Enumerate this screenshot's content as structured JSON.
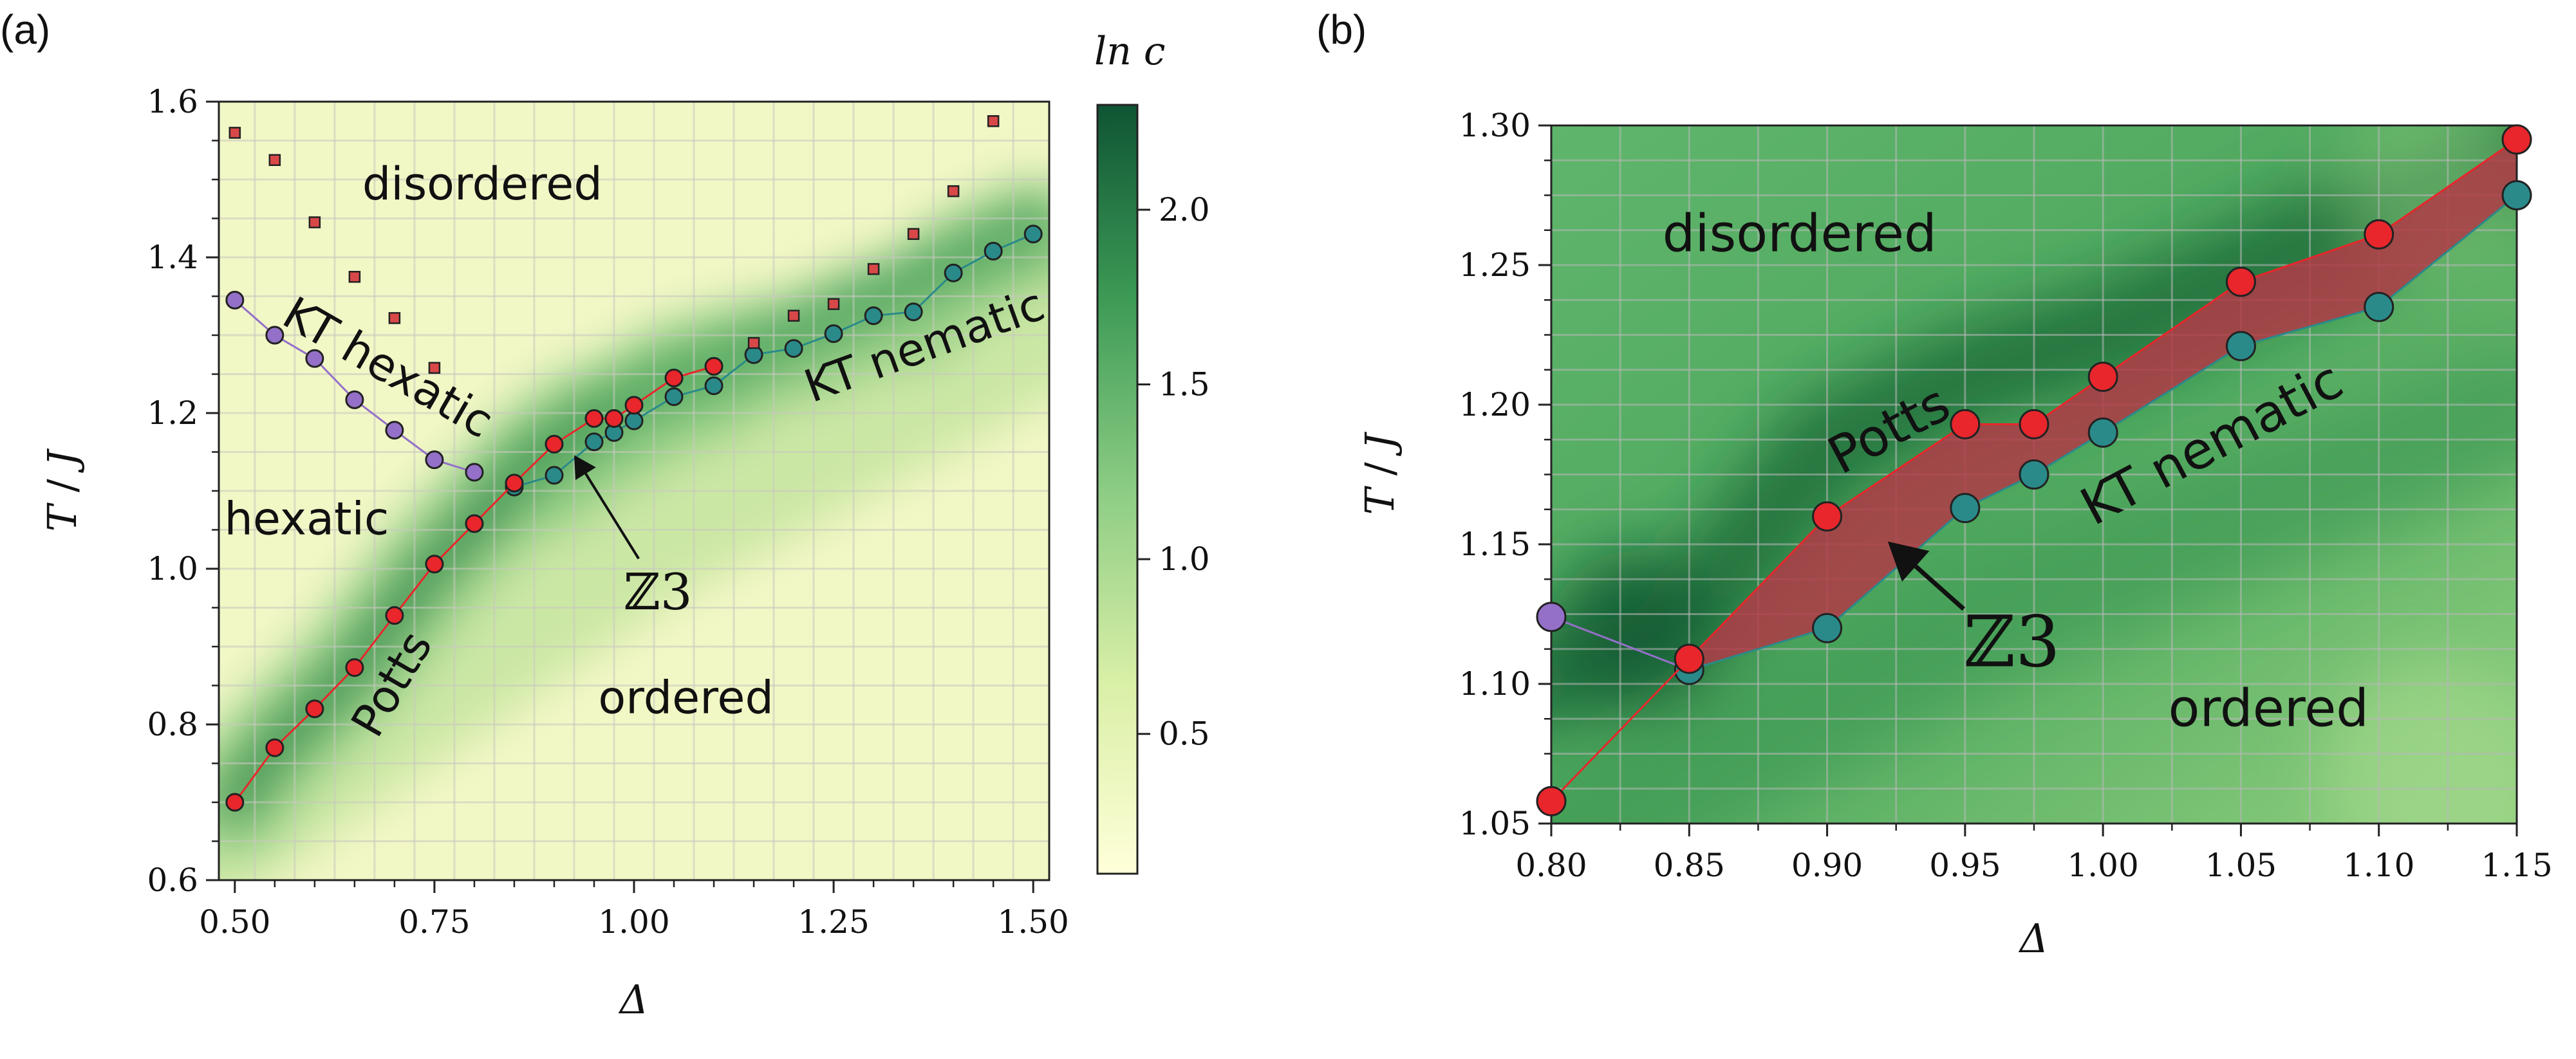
{
  "panel_a": {
    "label": "(a)",
    "colorbar_title": "ln c",
    "colorbar_ticks": [
      "0.5",
      "1.0",
      "1.5",
      "2.0"
    ]
  },
  "panel_b": {
    "label": "(b)"
  },
  "colors": {
    "potts": "#e8262b",
    "nematic": "#2a8a8a",
    "hexatic": "#9470c8",
    "square_marker": "#d84848",
    "band_fill": "#b03a46"
  },
  "chart_data": [
    {
      "type": "heatmap",
      "panel": "a",
      "title": "",
      "xlabel": "Δ",
      "ylabel": "T/J",
      "xlim": [
        0.48,
        1.52
      ],
      "ylim": [
        0.6,
        1.6
      ],
      "xticks": [
        0.5,
        0.75,
        1.0,
        1.25,
        1.5
      ],
      "xtick_labels": [
        "0.50",
        "0.75",
        "1.00",
        "1.25",
        "1.50"
      ],
      "yticks": [
        0.6,
        0.8,
        1.0,
        1.2,
        1.4,
        1.6
      ],
      "ytick_labels": [
        "0.6",
        "0.8",
        "1.0",
        "1.2",
        "1.4",
        "1.6"
      ],
      "colorbar": {
        "label": "ln c",
        "range": [
          0.1,
          2.3
        ],
        "ticks": [
          0.5,
          1.0,
          1.5,
          2.0
        ],
        "colormap": "YlGn"
      },
      "grid": true,
      "series": [
        {
          "name": "Potts",
          "marker": "circle",
          "color": "#e8262b",
          "x": [
            0.5,
            0.55,
            0.6,
            0.65,
            0.7,
            0.75,
            0.8,
            0.85,
            0.9,
            0.95,
            0.975,
            1.0,
            1.05,
            1.1
          ],
          "y": [
            0.7,
            0.77,
            0.82,
            0.873,
            0.94,
            1.006,
            1.058,
            1.11,
            1.16,
            1.193,
            1.193,
            1.21,
            1.245,
            1.26
          ]
        },
        {
          "name": "KT hexatic",
          "marker": "circle",
          "color": "#9470c8",
          "x": [
            0.5,
            0.55,
            0.6,
            0.65,
            0.7,
            0.75,
            0.8
          ],
          "y": [
            1.345,
            1.3,
            1.27,
            1.217,
            1.178,
            1.14,
            1.124
          ]
        },
        {
          "name": "KT nematic",
          "marker": "circle",
          "color": "#2a8a8a",
          "x": [
            0.85,
            0.9,
            0.95,
            0.975,
            1.0,
            1.05,
            1.1,
            1.15,
            1.2,
            1.25,
            1.3,
            1.35,
            1.4,
            1.45,
            1.5
          ],
          "y": [
            1.105,
            1.12,
            1.163,
            1.175,
            1.19,
            1.221,
            1.235,
            1.275,
            1.283,
            1.302,
            1.325,
            1.33,
            1.38,
            1.408,
            1.43
          ]
        },
        {
          "marker": "square",
          "color": "#d84848",
          "x": [
            0.5,
            0.55,
            0.6,
            0.65,
            0.7,
            0.75,
            1.15,
            1.2,
            1.25,
            1.3,
            1.35,
            1.4,
            1.45
          ],
          "y": [
            1.56,
            1.525,
            1.445,
            1.375,
            1.322,
            1.258,
            1.29,
            1.325,
            1.34,
            1.385,
            1.43,
            1.485,
            1.575
          ]
        }
      ],
      "annotations": [
        {
          "text": "disordered",
          "x": 0.81,
          "y": 1.49
        },
        {
          "text": "hexatic",
          "x": 0.59,
          "y": 1.06
        },
        {
          "text": "ordered",
          "x": 1.065,
          "y": 0.83
        },
        {
          "text": "Potts",
          "x": 0.7,
          "y": 0.85,
          "rotation": -60
        },
        {
          "text": "KT hexatic",
          "x": 0.69,
          "y": 1.255,
          "rotation": 30
        },
        {
          "text": "KT nematic",
          "x": 1.365,
          "y": 1.283,
          "rotation": -20
        },
        {
          "text": "ℤ3",
          "x": 1.03,
          "y": 0.965,
          "arrow_to": [
            0.925,
            1.146
          ]
        }
      ]
    },
    {
      "type": "heatmap",
      "panel": "b",
      "title": "",
      "xlabel": "Δ",
      "ylabel": "T/J",
      "xlim": [
        0.8,
        1.15
      ],
      "ylim": [
        1.05,
        1.3
      ],
      "xticks": [
        0.8,
        0.85,
        0.9,
        0.95,
        1.0,
        1.05,
        1.1,
        1.15
      ],
      "xtick_labels": [
        "0.80",
        "0.85",
        "0.90",
        "0.95",
        "1.00",
        "1.05",
        "1.10",
        "1.15"
      ],
      "yticks": [
        1.05,
        1.1,
        1.15,
        1.2,
        1.25,
        1.3
      ],
      "ytick_labels": [
        "1.05",
        "1.10",
        "1.15",
        "1.20",
        "1.25",
        "1.30"
      ],
      "grid": true,
      "series": [
        {
          "name": "Potts",
          "marker": "circle",
          "color": "#e8262b",
          "x": [
            0.8,
            0.85,
            0.9,
            0.95,
            0.975,
            1.0,
            1.05,
            1.1,
            1.15
          ],
          "y": [
            1.058,
            1.109,
            1.16,
            1.193,
            1.193,
            1.21,
            1.244,
            1.261,
            1.295
          ]
        },
        {
          "name": "KT nematic",
          "marker": "circle",
          "color": "#2a8a8a",
          "x": [
            0.85,
            0.9,
            0.95,
            0.975,
            1.0,
            1.05,
            1.1,
            1.15
          ],
          "y": [
            1.105,
            1.12,
            1.163,
            1.175,
            1.19,
            1.221,
            1.235,
            1.275
          ]
        },
        {
          "name": "KT hexatic",
          "marker": "circle",
          "color": "#9470c8",
          "x": [
            0.8
          ],
          "y": [
            1.124
          ]
        }
      ],
      "annotations": [
        {
          "text": "disordered",
          "x": 0.89,
          "y": 1.26
        },
        {
          "text": "ordered",
          "x": 1.06,
          "y": 1.09
        },
        {
          "text": "Potts",
          "x": 0.923,
          "y": 1.19,
          "rotation": -28
        },
        {
          "text": "KT nematic",
          "x": 1.04,
          "y": 1.185,
          "rotation": -28
        },
        {
          "text": "ℤ3",
          "x": 0.967,
          "y": 1.113,
          "arrow_to": [
            0.922,
            1.151
          ]
        }
      ]
    }
  ]
}
